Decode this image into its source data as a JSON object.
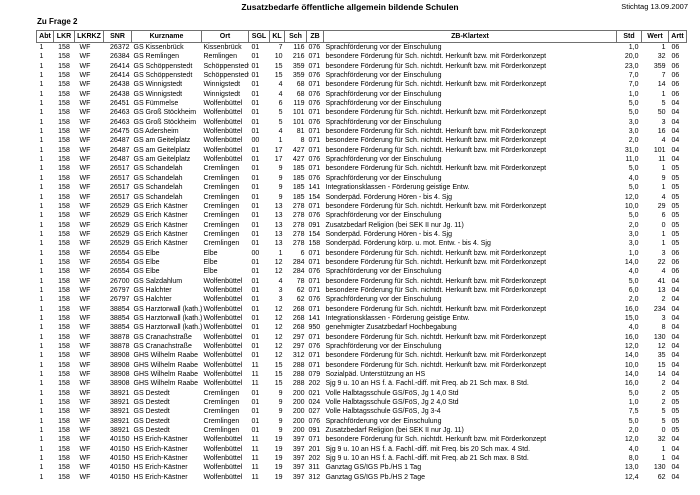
{
  "page": {
    "title": "Zusatzbedarfe öffentliche allgemein bildende Schulen",
    "stichtag": "Stichtag 13.09.2007",
    "section_label": "Zu Frage 2"
  },
  "table": {
    "columns": [
      "Abt",
      "LKR",
      "LKRKZ",
      "SNR",
      "Kurzname",
      "Ort",
      "SGL",
      "KL",
      "Sch",
      "ZB",
      "ZB-Klartext",
      "Std",
      "Wert",
      "Artt"
    ],
    "rows": [
      [
        "1",
        "158",
        "WF",
        "26372",
        "GS Kissenbrück",
        "Kissenbrück",
        "01",
        "7",
        "116",
        "076",
        "Sprachförderung vor der Einschulung",
        "1,0",
        "1",
        "06"
      ],
      [
        "1",
        "158",
        "WF",
        "26384",
        "GS Remlingen",
        "Remlingen",
        "01",
        "10",
        "216",
        "071",
        "besondere Förderung für Sch. nichtdt. Herkunft bzw. mit Förderkonzept",
        "20,0",
        "32",
        "06"
      ],
      [
        "1",
        "158",
        "WF",
        "26414",
        "GS Schöppenstedt",
        "Schöppenstedt",
        "01",
        "15",
        "359",
        "071",
        "besondere Förderung für Sch. nichtdt. Herkunft bzw. mit Förderkonzept",
        "23,0",
        "359",
        "06"
      ],
      [
        "1",
        "158",
        "WF",
        "26414",
        "GS Schöppenstedt",
        "Schöppenstedt",
        "01",
        "15",
        "359",
        "076",
        "Sprachförderung vor der Einschulung",
        "7,0",
        "7",
        "06"
      ],
      [
        "1",
        "158",
        "WF",
        "26438",
        "GS Winnigstedt",
        "Winnigstedt",
        "01",
        "4",
        "68",
        "071",
        "besondere Förderung für Sch. nichtdt. Herkunft bzw. mit Förderkonzept",
        "7,0",
        "14",
        "06"
      ],
      [
        "1",
        "158",
        "WF",
        "26438",
        "GS Winnigstedt",
        "Winnigstedt",
        "01",
        "4",
        "68",
        "076",
        "Sprachförderung vor der Einschulung",
        "1,0",
        "1",
        "06"
      ],
      [
        "1",
        "158",
        "WF",
        "26451",
        "GS Fümmelse",
        "Wolfenbüttel",
        "01",
        "6",
        "119",
        "076",
        "Sprachförderung vor der Einschulung",
        "5,0",
        "5",
        "04"
      ],
      [
        "1",
        "158",
        "WF",
        "26463",
        "GS Groß Stöckheim",
        "Wolfenbüttel",
        "01",
        "5",
        "101",
        "071",
        "besondere Förderung für Sch. nichtdt. Herkunft bzw. mit Förderkonzept",
        "5,0",
        "50",
        "04"
      ],
      [
        "1",
        "158",
        "WF",
        "26463",
        "GS Groß Stöckheim",
        "Wolfenbüttel",
        "01",
        "5",
        "101",
        "076",
        "Sprachförderung vor der Einschulung",
        "3,0",
        "3",
        "04"
      ],
      [
        "1",
        "158",
        "WF",
        "26475",
        "GS Adersheim",
        "Wolfenbüttel",
        "01",
        "4",
        "81",
        "071",
        "besondere Förderung für Sch. nichtdt. Herkunft bzw. mit Förderkonzept",
        "3,0",
        "16",
        "04"
      ],
      [
        "1",
        "158",
        "WF",
        "26487",
        "GS am Geitelplatz",
        "Wolfenbüttel",
        "00",
        "1",
        "8",
        "071",
        "besondere Förderung für Sch. nichtdt. Herkunft bzw. mit Förderkonzept",
        "2,0",
        "4",
        "04"
      ],
      [
        "1",
        "158",
        "WF",
        "26487",
        "GS am Geitelplatz",
        "Wolfenbüttel",
        "01",
        "17",
        "427",
        "071",
        "besondere Förderung für Sch. nichtdt. Herkunft bzw. mit Förderkonzept",
        "31,0",
        "101",
        "04"
      ],
      [
        "1",
        "158",
        "WF",
        "26487",
        "GS am Geitelplatz",
        "Wolfenbüttel",
        "01",
        "17",
        "427",
        "076",
        "Sprachförderung vor der Einschulung",
        "11,0",
        "11",
        "04"
      ],
      [
        "1",
        "158",
        "WF",
        "26517",
        "GS Schandelah",
        "Cremlingen",
        "01",
        "9",
        "185",
        "071",
        "besondere Förderung für Sch. nichtdt. Herkunft bzw. mit Förderkonzept",
        "5,0",
        "1",
        "05"
      ],
      [
        "1",
        "158",
        "WF",
        "26517",
        "GS Schandelah",
        "Cremlingen",
        "01",
        "9",
        "185",
        "076",
        "Sprachförderung vor der Einschulung",
        "4,0",
        "9",
        "05"
      ],
      [
        "1",
        "158",
        "WF",
        "26517",
        "GS Schandelah",
        "Cremlingen",
        "01",
        "9",
        "185",
        "141",
        "Integrationsklassen - Förderung geistige Entw.",
        "5,0",
        "1",
        "05"
      ],
      [
        "1",
        "158",
        "WF",
        "26517",
        "GS Schandelah",
        "Cremlingen",
        "01",
        "9",
        "185",
        "154",
        "Sonderpäd. Förderung Hören - bis 4. Sjg",
        "12,0",
        "4",
        "05"
      ],
      [
        "1",
        "158",
        "WF",
        "26529",
        "GS Erich Kästner",
        "Cremlingen",
        "01",
        "13",
        "278",
        "071",
        "besondere Förderung für Sch. nichtdt. Herkunft bzw. mit Förderkonzept",
        "10,0",
        "29",
        "05"
      ],
      [
        "1",
        "158",
        "WF",
        "26529",
        "GS Erich Kästner",
        "Cremlingen",
        "01",
        "13",
        "278",
        "076",
        "Sprachförderung vor der Einschulung",
        "5,0",
        "6",
        "05"
      ],
      [
        "1",
        "158",
        "WF",
        "26529",
        "GS Erich Kästner",
        "Cremlingen",
        "01",
        "13",
        "278",
        "091",
        "Zusatzbedarf Religion (bei SEK II nur Jg. 11)",
        "2,0",
        "0",
        "05"
      ],
      [
        "1",
        "158",
        "WF",
        "26529",
        "GS Erich Kästner",
        "Cremlingen",
        "01",
        "13",
        "278",
        "154",
        "Sonderpäd. Förderung Hören - bis 4. Sjg",
        "3,0",
        "1",
        "05"
      ],
      [
        "1",
        "158",
        "WF",
        "26529",
        "GS Erich Kästner",
        "Cremlingen",
        "01",
        "13",
        "278",
        "158",
        "Sonderpäd. Förderung körp. u. mot. Entw. - bis 4. Sjg",
        "3,0",
        "1",
        "05"
      ],
      [
        "1",
        "158",
        "WF",
        "26554",
        "GS Elbe",
        "Elbe",
        "00",
        "1",
        "6",
        "071",
        "besondere Förderung für Sch. nichtdt. Herkunft bzw. mit Förderkonzept",
        "1,0",
        "3",
        "06"
      ],
      [
        "1",
        "158",
        "WF",
        "26554",
        "GS Elbe",
        "Elbe",
        "01",
        "12",
        "284",
        "071",
        "besondere Förderung für Sch. nichtdt. Herkunft bzw. mit Förderkonzept",
        "14,0",
        "22",
        "06"
      ],
      [
        "1",
        "158",
        "WF",
        "26554",
        "GS Elbe",
        "Elbe",
        "01",
        "12",
        "284",
        "076",
        "Sprachförderung vor der Einschulung",
        "4,0",
        "4",
        "06"
      ],
      [
        "1",
        "158",
        "WF",
        "26700",
        "GS Salzdahlum",
        "Wolfenbüttel",
        "01",
        "4",
        "78",
        "071",
        "besondere Förderung für Sch. nichtdt. Herkunft bzw. mit Förderkonzept",
        "5,0",
        "41",
        "04"
      ],
      [
        "1",
        "158",
        "WF",
        "26797",
        "GS Halchter",
        "Wolfenbüttel",
        "01",
        "3",
        "62",
        "071",
        "besondere Förderung für Sch. nichtdt. Herkunft bzw. mit Förderkonzept",
        "6,0",
        "13",
        "04"
      ],
      [
        "1",
        "158",
        "WF",
        "26797",
        "GS Halchter",
        "Wolfenbüttel",
        "01",
        "3",
        "62",
        "076",
        "Sprachförderung vor der Einschulung",
        "2,0",
        "2",
        "04"
      ],
      [
        "1",
        "158",
        "WF",
        "38854",
        "GS Harztorwall (kath.)",
        "Wolfenbüttel",
        "01",
        "12",
        "268",
        "071",
        "besondere Förderung für Sch. nichtdt. Herkunft bzw. mit Förderkonzept",
        "16,0",
        "234",
        "04"
      ],
      [
        "1",
        "158",
        "WF",
        "38854",
        "GS Harztorwall (kath.)",
        "Wolfenbüttel",
        "01",
        "12",
        "268",
        "141",
        "Integrationsklassen - Förderung geistige Entw.",
        "15,0",
        "3",
        "04"
      ],
      [
        "1",
        "158",
        "WF",
        "38854",
        "GS Harztorwall (kath.)",
        "Wolfenbüttel",
        "01",
        "12",
        "268",
        "950",
        "genehmigter Zusatzbedarf Hochbegabung",
        "4,0",
        "8",
        "04"
      ],
      [
        "1",
        "158",
        "WF",
        "38878",
        "GS Cranachstraße",
        "Wolfenbüttel",
        "01",
        "12",
        "297",
        "071",
        "besondere Förderung für Sch. nichtdt. Herkunft bzw. mit Förderkonzept",
        "16,0",
        "130",
        "04"
      ],
      [
        "1",
        "158",
        "WF",
        "38878",
        "GS Cranachstraße",
        "Wolfenbüttel",
        "01",
        "12",
        "297",
        "076",
        "Sprachförderung vor der Einschulung",
        "12,0",
        "12",
        "04"
      ],
      [
        "1",
        "158",
        "WF",
        "38908",
        "GHS Wilhelm Raabe",
        "Wolfenbüttel",
        "01",
        "12",
        "312",
        "071",
        "besondere Förderung für Sch. nichtdt. Herkunft bzw. mit Förderkonzept",
        "14,0",
        "35",
        "04"
      ],
      [
        "1",
        "158",
        "WF",
        "38908",
        "GHS Wilhelm Raabe",
        "Wolfenbüttel",
        "11",
        "15",
        "288",
        "071",
        "besondere Förderung für Sch. nichtdt. Herkunft bzw. mit Förderkonzept",
        "10,0",
        "15",
        "04"
      ],
      [
        "1",
        "158",
        "WF",
        "38908",
        "GHS Wilhelm Raabe",
        "Wolfenbüttel",
        "11",
        "15",
        "288",
        "079",
        "Sozialpäd. Unterstützung an HS",
        "14,0",
        "14",
        "04"
      ],
      [
        "1",
        "158",
        "WF",
        "38908",
        "GHS Wilhelm Raabe",
        "Wolfenbüttel",
        "11",
        "15",
        "288",
        "202",
        "Sjg 9 u. 10 an HS f. ä. Fachl.-diff. mit Freq. ab 21 Sch max. 8 Std.",
        "16,0",
        "2",
        "04"
      ],
      [
        "1",
        "158",
        "WF",
        "38921",
        "GS Destedt",
        "Cremlingen",
        "01",
        "9",
        "200",
        "021",
        "Volle Halbtagsschule GS/FöS, Jg 1  4,0 Std",
        "5,0",
        "2",
        "05"
      ],
      [
        "1",
        "158",
        "WF",
        "38921",
        "GS Destedt",
        "Cremlingen",
        "01",
        "9",
        "200",
        "024",
        "Volle Halbtagsschule GS/FöS, Jg 2  4,0 Std",
        "1,0",
        "2",
        "05"
      ],
      [
        "1",
        "158",
        "WF",
        "38921",
        "GS Destedt",
        "Cremlingen",
        "01",
        "9",
        "200",
        "027",
        "Volle Halbtagsschule GS/FöS, Jg 3-4",
        "7,5",
        "5",
        "05"
      ],
      [
        "1",
        "158",
        "WF",
        "38921",
        "GS Destedt",
        "Cremlingen",
        "01",
        "9",
        "200",
        "076",
        "Sprachförderung vor der Einschulung",
        "5,0",
        "5",
        "05"
      ],
      [
        "1",
        "158",
        "WF",
        "38921",
        "GS Destedt",
        "Cremlingen",
        "01",
        "9",
        "200",
        "091",
        "Zusatzbedarf Religion (bei SEK II nur Jg. 11)",
        "2,0",
        "0",
        "05"
      ],
      [
        "1",
        "158",
        "WF",
        "40150",
        "HS Erich-Kästner",
        "Wolfenbüttel",
        "11",
        "19",
        "397",
        "071",
        "besondere Förderung für Sch. nichtdt. Herkunft bzw. mit Förderkonzept",
        "12,0",
        "32",
        "04"
      ],
      [
        "1",
        "158",
        "WF",
        "40150",
        "HS Erich-Kästner",
        "Wolfenbüttel",
        "11",
        "19",
        "397",
        "201",
        "Sjg 9 u. 10 an HS f. ä. Fachl.-diff. mit Freq. bis 20 Sch max. 4 Std.",
        "4,0",
        "1",
        "04"
      ],
      [
        "1",
        "158",
        "WF",
        "40150",
        "HS Erich-Kästner",
        "Wolfenbüttel",
        "11",
        "19",
        "397",
        "202",
        "Sjg 9 u. 10 an HS f. ä. Fachl.-diff. mit Freq. ab 21 Sch max. 8 Std.",
        "8,0",
        "1",
        "04"
      ],
      [
        "1",
        "158",
        "WF",
        "40150",
        "HS Erich-Kästner",
        "Wolfenbüttel",
        "11",
        "19",
        "397",
        "311",
        "Ganztag GS/IGS Pb./HS 1 Tag",
        "13,0",
        "130",
        "04"
      ],
      [
        "1",
        "158",
        "WF",
        "40150",
        "HS Erich-Kästner",
        "Wolfenbüttel",
        "11",
        "19",
        "397",
        "312",
        "Ganztag GS/IGS Pb./HS 2 Tage",
        "12,4",
        "62",
        "04"
      ]
    ]
  }
}
